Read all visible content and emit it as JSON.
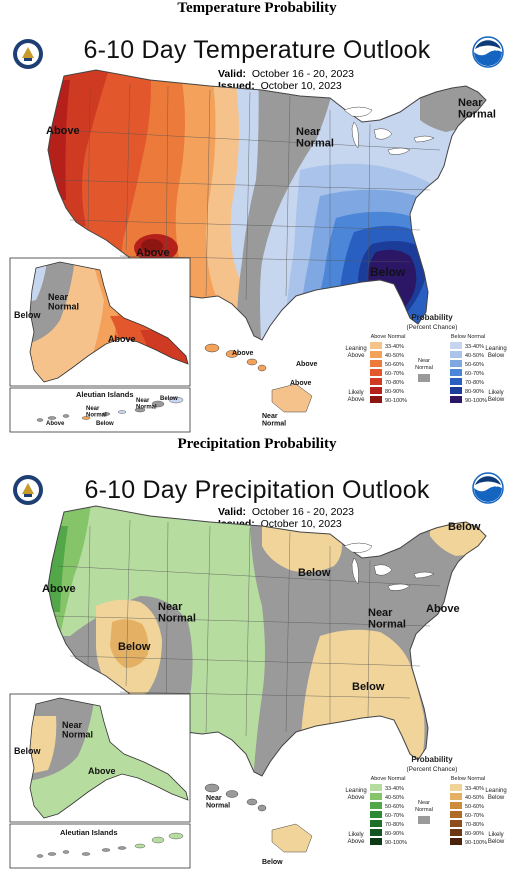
{
  "temperature": {
    "heading": "Temperature Probability",
    "title": "6-10 Day Temperature Outlook",
    "valid_label": "Valid:",
    "valid": "October 16 - 20, 2023",
    "issued_label": "Issued:",
    "issued": "October 10, 2023",
    "labels": {
      "above_west": "Above",
      "above_sw": "Above",
      "near_normal_central": "Near\nNormal",
      "near_normal_ne": "Near\nNormal",
      "below_se": "Below",
      "alaska_below": "Below",
      "alaska_near": "Near\nNormal",
      "alaska_above": "Above",
      "aleutian": "Aleutian Islands",
      "aleut_near": "Near\nNormal",
      "aleut_above": "Above",
      "aleut_below1": "Below",
      "aleut_near2": "Near\nNormal",
      "aleut_below2": "Below",
      "hawaii_above1": "Above",
      "hawaii_above2": "Above",
      "hawaii_above3": "Above",
      "hawaii_near": "Near\nNormal"
    },
    "legend": {
      "title": "Probability",
      "subtitle": "(Percent Chance)",
      "col_above": "Above Normal",
      "col_below": "Below Normal",
      "leaning_above": "Leaning\nAbove",
      "likely_above": "Likely\nAbove",
      "near_normal": "Near\nNormal",
      "leaning_below": "Leaning\nBelow",
      "likely_below": "Likely\nBelow",
      "bins": [
        "33-40%",
        "40-50%",
        "50-60%",
        "60-70%",
        "70-80%",
        "80-90%",
        "90-100%"
      ],
      "above_colors": [
        "#f6c28b",
        "#f3a15b",
        "#ec7a3a",
        "#e2572c",
        "#cf3a23",
        "#b5201a",
        "#8d1512"
      ],
      "below_colors": [
        "#c6d6ef",
        "#a9c3ea",
        "#7fa8e2",
        "#4c86d8",
        "#2a5fc2",
        "#1b3c98",
        "#2b1766"
      ],
      "near_color": "#9a9a9a"
    }
  },
  "precipitation": {
    "heading": "Precipitation Probability",
    "title": "6-10 Day Precipitation Outlook",
    "valid_label": "Valid:",
    "valid": "October 16 - 20, 2023",
    "issued_label": "Issued:",
    "issued": "October 10, 2023",
    "labels": {
      "above_west": "Above",
      "near_normal_w": "Near\nNormal",
      "below_sw": "Below",
      "below_north": "Below",
      "below_ne": "Below",
      "near_normal_e": "Near\nNormal",
      "above_ne": "Above",
      "below_se": "Below",
      "alaska_below": "Below",
      "alaska_near": "Near\nNormal",
      "alaska_above": "Above",
      "aleutian": "Aleutian Islands",
      "hawaii_near": "Near\nNormal",
      "hawaii_below": "Below"
    },
    "legend": {
      "title": "Probability",
      "subtitle": "(Percent Chance)",
      "col_above": "Above Normal",
      "col_below": "Below Normal",
      "leaning_above": "Leaning\nAbove",
      "likely_above": "Likely\nAbove",
      "near_normal": "Near\nNormal",
      "leaning_below": "Leaning\nBelow",
      "likely_below": "Likely\nBelow",
      "bins": [
        "33-40%",
        "40-50%",
        "50-60%",
        "60-70%",
        "70-80%",
        "80-90%",
        "90-100%"
      ],
      "above_colors": [
        "#b6dca0",
        "#86c46a",
        "#52a848",
        "#2e8a35",
        "#1f6e2a",
        "#145420",
        "#0b3a15"
      ],
      "below_colors": [
        "#f1d49a",
        "#e3b064",
        "#cc8c3c",
        "#b06a28",
        "#8e4e1c",
        "#6c3713",
        "#4a220b"
      ],
      "near_color": "#9a9a9a"
    }
  },
  "colors": {
    "outline": "#444444",
    "ocean": "#ffffff",
    "near_normal": "#9a9a9a",
    "noaa_blue": "#1565c0",
    "doc_blue": "#1d3f73"
  }
}
